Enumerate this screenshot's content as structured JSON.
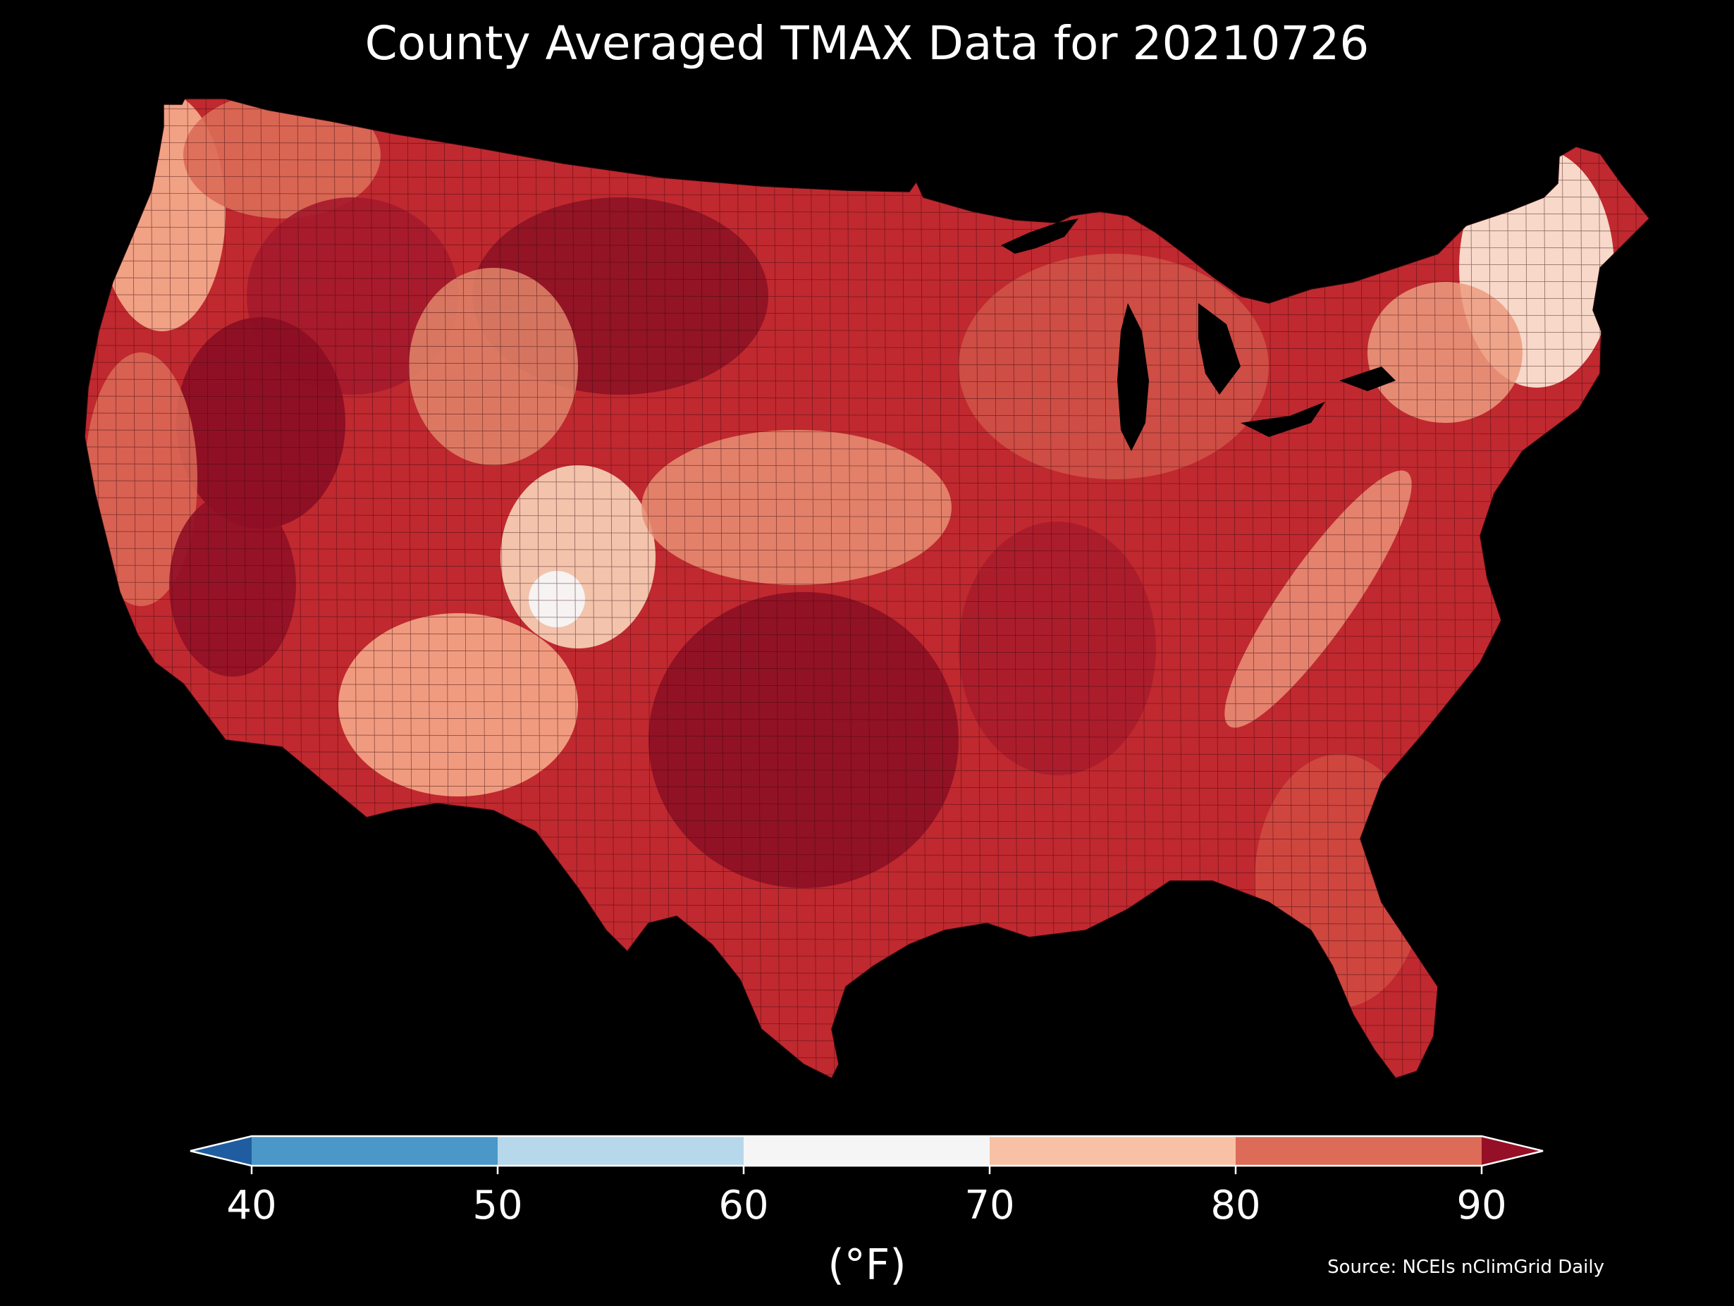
{
  "title": "County Averaged TMAX Data for 20210726",
  "source": "Source: NCEIs nClimGrid Daily",
  "colorbar": {
    "label": "(°F)",
    "ticks": [
      "40",
      "50",
      "60",
      "70",
      "80",
      "90"
    ],
    "tick_values": [
      40,
      50,
      60,
      70,
      80,
      90
    ],
    "extend": "both",
    "bins": [
      {
        "range": "<40",
        "color": "#1f5da0"
      },
      {
        "range": "40-50",
        "color": "#4b97c7"
      },
      {
        "range": "50-60",
        "color": "#b7d8ea"
      },
      {
        "range": "60-70",
        "color": "#f5f5f5"
      },
      {
        "range": "70-80",
        "color": "#f8c1a5"
      },
      {
        "range": "80-90",
        "color": "#dc6b58"
      },
      {
        "range": ">90",
        "color": "#950f26"
      }
    ]
  },
  "map": {
    "region": "Contiguous United States",
    "variable": "TMAX",
    "date": "20210726",
    "land_color_dominant": "#c0292f",
    "background": "#000000",
    "regions": [
      {
        "name": "Pacific Northwest coast",
        "bin": "70-80"
      },
      {
        "name": "Northern Rockies / Great Plains north",
        "bin": ">90"
      },
      {
        "name": "Great Basin / California Central Valley",
        "bin": ">90"
      },
      {
        "name": "Colorado Rockies",
        "bin": "60-70"
      },
      {
        "name": "Arizona / New Mexico",
        "bin": "70-80"
      },
      {
        "name": "Central Plains (Kansas/Nebraska)",
        "bin": "80-90"
      },
      {
        "name": "Texas / Southern Plains",
        "bin": ">90"
      },
      {
        "name": "Great Lakes / Midwest",
        "bin": "80-90"
      },
      {
        "name": "Appalachians",
        "bin": "70-80"
      },
      {
        "name": "Southeast / Gulf Coast",
        "bin": "80-90"
      },
      {
        "name": "Northern New England",
        "bin": "70-80"
      }
    ]
  }
}
